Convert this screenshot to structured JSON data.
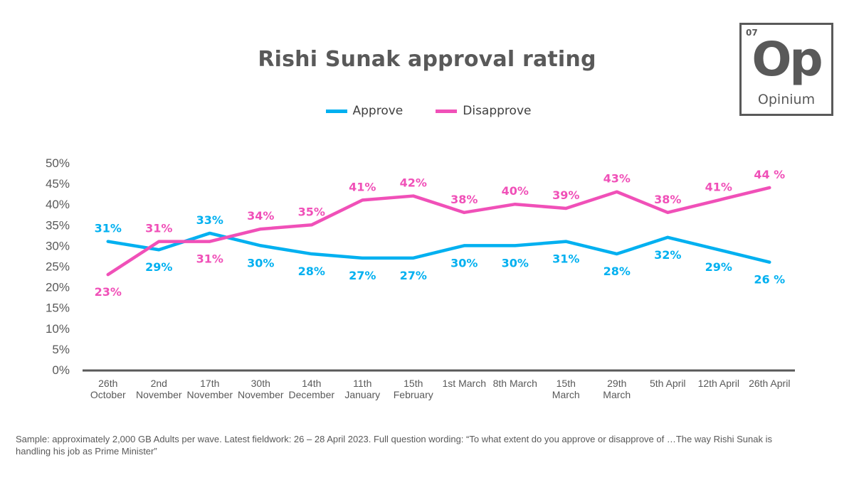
{
  "title": "Rishi Sunak approval rating",
  "logo": {
    "number": "07",
    "symbol": "Op",
    "name": "Opinium"
  },
  "footnote": "Sample: approximately 2,000 GB Adults per wave. Latest fieldwork: 26 – 28 April 2023. Full question wording: “To what extent do you approve or disapprove of …The way Rishi Sunak is handling his job as Prime Minister”",
  "chart_data": {
    "type": "line",
    "title": "Rishi Sunak approval rating",
    "xlabel": "",
    "ylabel": "",
    "ylim": [
      0,
      50
    ],
    "yticks": [
      "0%",
      "5%",
      "10%",
      "15%",
      "20%",
      "25%",
      "30%",
      "35%",
      "40%",
      "45%",
      "50%"
    ],
    "grid": false,
    "legend": "top-center",
    "categories": [
      [
        "26th",
        "October"
      ],
      [
        "2nd",
        "November"
      ],
      [
        "17th",
        "November"
      ],
      [
        "30th",
        "November"
      ],
      [
        "14th",
        "December"
      ],
      [
        "11th",
        "January"
      ],
      [
        "15th",
        "February"
      ],
      [
        "1st March"
      ],
      [
        "8th March"
      ],
      [
        "15th",
        "March"
      ],
      [
        "29th",
        "March"
      ],
      [
        "5th April"
      ],
      [
        "12th April"
      ],
      [
        "26th April"
      ]
    ],
    "series": [
      {
        "name": "Approve",
        "color": "#00B0F0",
        "values": [
          31,
          29,
          33,
          30,
          28,
          27,
          27,
          30,
          30,
          31,
          28,
          32,
          29,
          26
        ],
        "labels": [
          "31%",
          "29%",
          "33%",
          "30%",
          "28%",
          "27%",
          "27%",
          "30%",
          "30%",
          "31%",
          "28%",
          "32%",
          "29%",
          "26 %"
        ],
        "label_pos": [
          "above",
          "below",
          "above",
          "below",
          "below",
          "below",
          "below",
          "below",
          "below",
          "below",
          "below",
          "below",
          "below",
          "below"
        ]
      },
      {
        "name": "Disapprove",
        "color": "#F050B8",
        "values": [
          23,
          31,
          31,
          34,
          35,
          41,
          42,
          38,
          40,
          39,
          43,
          38,
          41,
          44
        ],
        "labels": [
          "23%",
          "31%",
          "31%",
          "34%",
          "35%",
          "41%",
          "42%",
          "38%",
          "40%",
          "39%",
          "43%",
          "38%",
          "41%",
          "44 %"
        ],
        "label_pos": [
          "below",
          "above",
          "below",
          "above",
          "above",
          "above",
          "above",
          "above",
          "above",
          "above",
          "above",
          "above",
          "above",
          "above"
        ]
      }
    ]
  }
}
